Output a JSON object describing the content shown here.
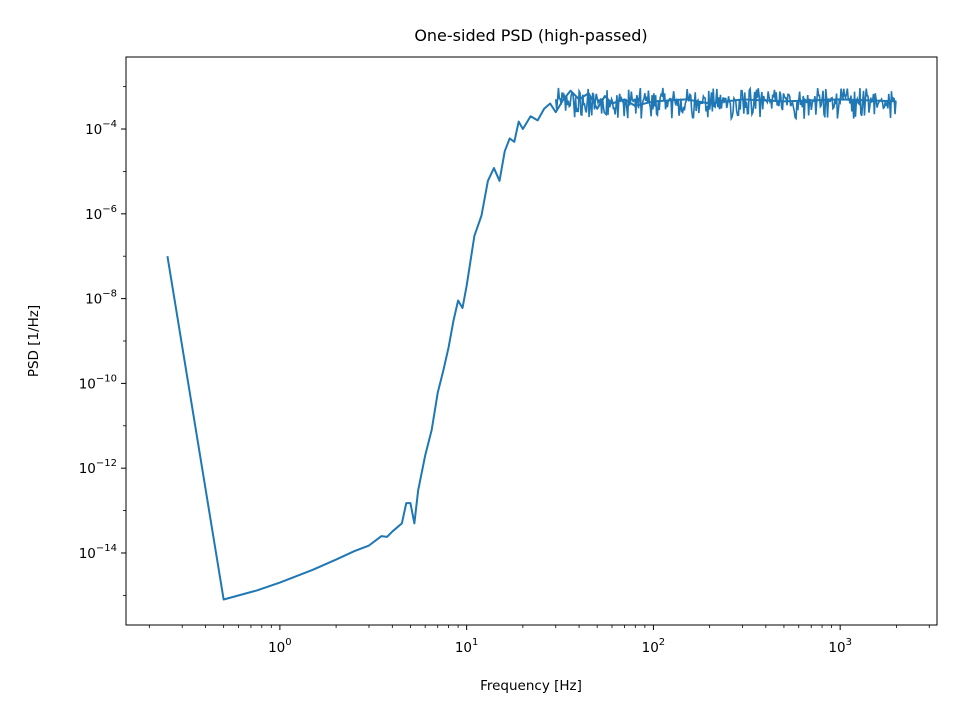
{
  "chart_data": {
    "type": "line",
    "title": "One-sided PSD (high-passed)",
    "xlabel": "Frequency [Hz]",
    "ylabel": "PSD [1/Hz]",
    "xscale": "log",
    "yscale": "log",
    "xlim": [
      0.15,
      3300
    ],
    "ylim": [
      2e-16,
      0.005
    ],
    "grid": false,
    "line_color": "#1f77b4",
    "x_ticks": [
      {
        "value": 1,
        "base": "10",
        "exp": "0"
      },
      {
        "value": 10,
        "base": "10",
        "exp": "1"
      },
      {
        "value": 100,
        "base": "10",
        "exp": "2"
      },
      {
        "value": 1000,
        "base": "10",
        "exp": "3"
      }
    ],
    "y_ticks": [
      {
        "value": 1e-14,
        "base": "10",
        "exp": "−14"
      },
      {
        "value": 1e-12,
        "base": "10",
        "exp": "−12"
      },
      {
        "value": 1e-10,
        "base": "10",
        "exp": "−10"
      },
      {
        "value": 1e-08,
        "base": "10",
        "exp": "−8"
      },
      {
        "value": 1e-06,
        "base": "10",
        "exp": "−6"
      },
      {
        "value": 0.0001,
        "base": "10",
        "exp": "−4"
      }
    ],
    "series": [
      {
        "name": "PSD",
        "points": [
          [
            0.25,
            1e-07
          ],
          [
            0.5,
            8e-16
          ],
          [
            0.75,
            1.3e-15
          ],
          [
            1.0,
            2e-15
          ],
          [
            1.5,
            4e-15
          ],
          [
            2.0,
            7e-15
          ],
          [
            2.5,
            1.1e-14
          ],
          [
            3.0,
            1.5e-14
          ],
          [
            3.5,
            2.5e-14
          ],
          [
            3.75,
            2.4e-14
          ],
          [
            4.0,
            3.2e-14
          ],
          [
            4.5,
            5e-14
          ],
          [
            4.75,
            1.5e-13
          ],
          [
            5.0,
            1.5e-13
          ],
          [
            5.25,
            5e-14
          ],
          [
            5.5,
            3e-13
          ],
          [
            6.0,
            2e-12
          ],
          [
            6.5,
            8e-12
          ],
          [
            7.0,
            6e-11
          ],
          [
            7.5,
            2e-10
          ],
          [
            8.0,
            7e-10
          ],
          [
            8.5,
            3e-09
          ],
          [
            9.0,
            9e-09
          ],
          [
            9.5,
            6e-09
          ],
          [
            10.0,
            2e-08
          ],
          [
            11.0,
            3e-07
          ],
          [
            12.0,
            9e-07
          ],
          [
            13.0,
            6e-06
          ],
          [
            14.0,
            1.2e-05
          ],
          [
            15.0,
            6e-06
          ],
          [
            16.0,
            3e-05
          ],
          [
            17.0,
            6e-05
          ],
          [
            18.0,
            5e-05
          ],
          [
            19.0,
            0.00015
          ],
          [
            20.0,
            0.0001
          ],
          [
            22.0,
            0.0002
          ],
          [
            24.0,
            0.00016
          ],
          [
            26.0,
            0.0003
          ],
          [
            28.0,
            0.0004
          ],
          [
            30.0,
            0.00025
          ],
          [
            33.0,
            0.0005
          ],
          [
            36.0,
            0.0008
          ],
          [
            40.0,
            0.0005
          ],
          [
            45.0,
            0.0007
          ],
          [
            50.0,
            0.0003
          ],
          [
            55.0,
            0.0006
          ],
          [
            60.0,
            0.0004
          ],
          [
            70.0,
            0.0005
          ],
          [
            80.0,
            0.00035
          ],
          [
            100.0,
            0.00045
          ],
          [
            150.0,
            0.0005
          ],
          [
            200.0,
            0.0004
          ],
          [
            300.0,
            0.0005
          ],
          [
            500.0,
            0.00045
          ],
          [
            1000.0,
            0.0005
          ],
          [
            2000.0,
            0.00045
          ]
        ],
        "noise_band": {
          "x_start": 30,
          "x_end": 2000,
          "y_center": 0.00045,
          "y_low": 8e-05,
          "y_high": 0.0012
        }
      }
    ]
  }
}
